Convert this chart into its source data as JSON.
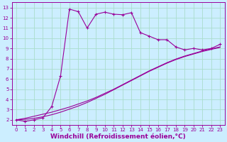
{
  "background_color": "#cceeff",
  "grid_color": "#aaddcc",
  "line_color": "#990099",
  "xlabel": "Windchill (Refroidissement éolien,°C)",
  "xlabel_fontsize": 6.5,
  "ylabel_values": [
    2,
    3,
    4,
    5,
    6,
    7,
    8,
    9,
    10,
    11,
    12,
    13
  ],
  "xlabel_values": [
    0,
    1,
    2,
    3,
    4,
    5,
    6,
    7,
    8,
    9,
    10,
    11,
    12,
    13,
    14,
    15,
    16,
    17,
    18,
    19,
    20,
    21,
    22,
    23
  ],
  "xlim": [
    -0.5,
    23.5
  ],
  "ylim": [
    1.5,
    13.5
  ],
  "curve1_x": [
    0,
    1,
    2,
    3,
    4,
    5,
    6,
    7,
    8,
    9,
    10,
    11,
    12,
    13,
    14,
    15,
    16,
    17,
    18,
    19,
    20,
    21,
    22,
    23
  ],
  "curve1_y": [
    2.0,
    1.85,
    2.0,
    2.2,
    3.3,
    6.3,
    12.85,
    12.6,
    11.0,
    12.35,
    12.55,
    12.35,
    12.3,
    12.5,
    10.55,
    10.2,
    9.85,
    9.85,
    9.15,
    8.85,
    9.0,
    8.85,
    9.0,
    9.4
  ],
  "curve2_x": [
    0,
    1,
    2,
    3,
    4,
    5,
    6,
    7,
    8,
    9,
    10,
    11,
    12,
    13,
    14,
    15,
    16,
    17,
    18,
    19,
    20,
    21,
    22,
    23
  ],
  "curve2_y": [
    2.0,
    2.15,
    2.35,
    2.55,
    2.75,
    3.0,
    3.25,
    3.55,
    3.85,
    4.2,
    4.6,
    5.0,
    5.45,
    5.9,
    6.35,
    6.8,
    7.2,
    7.6,
    7.95,
    8.25,
    8.5,
    8.75,
    8.95,
    9.15
  ],
  "curve3_x": [
    0,
    1,
    2,
    3,
    4,
    5,
    6,
    7,
    8,
    9,
    10,
    11,
    12,
    13,
    14,
    15,
    16,
    17,
    18,
    19,
    20,
    21,
    22,
    23
  ],
  "curve3_y": [
    2.0,
    2.05,
    2.15,
    2.3,
    2.5,
    2.75,
    3.05,
    3.35,
    3.7,
    4.1,
    4.5,
    4.95,
    5.4,
    5.85,
    6.3,
    6.75,
    7.15,
    7.55,
    7.9,
    8.2,
    8.45,
    8.7,
    8.9,
    9.1
  ]
}
